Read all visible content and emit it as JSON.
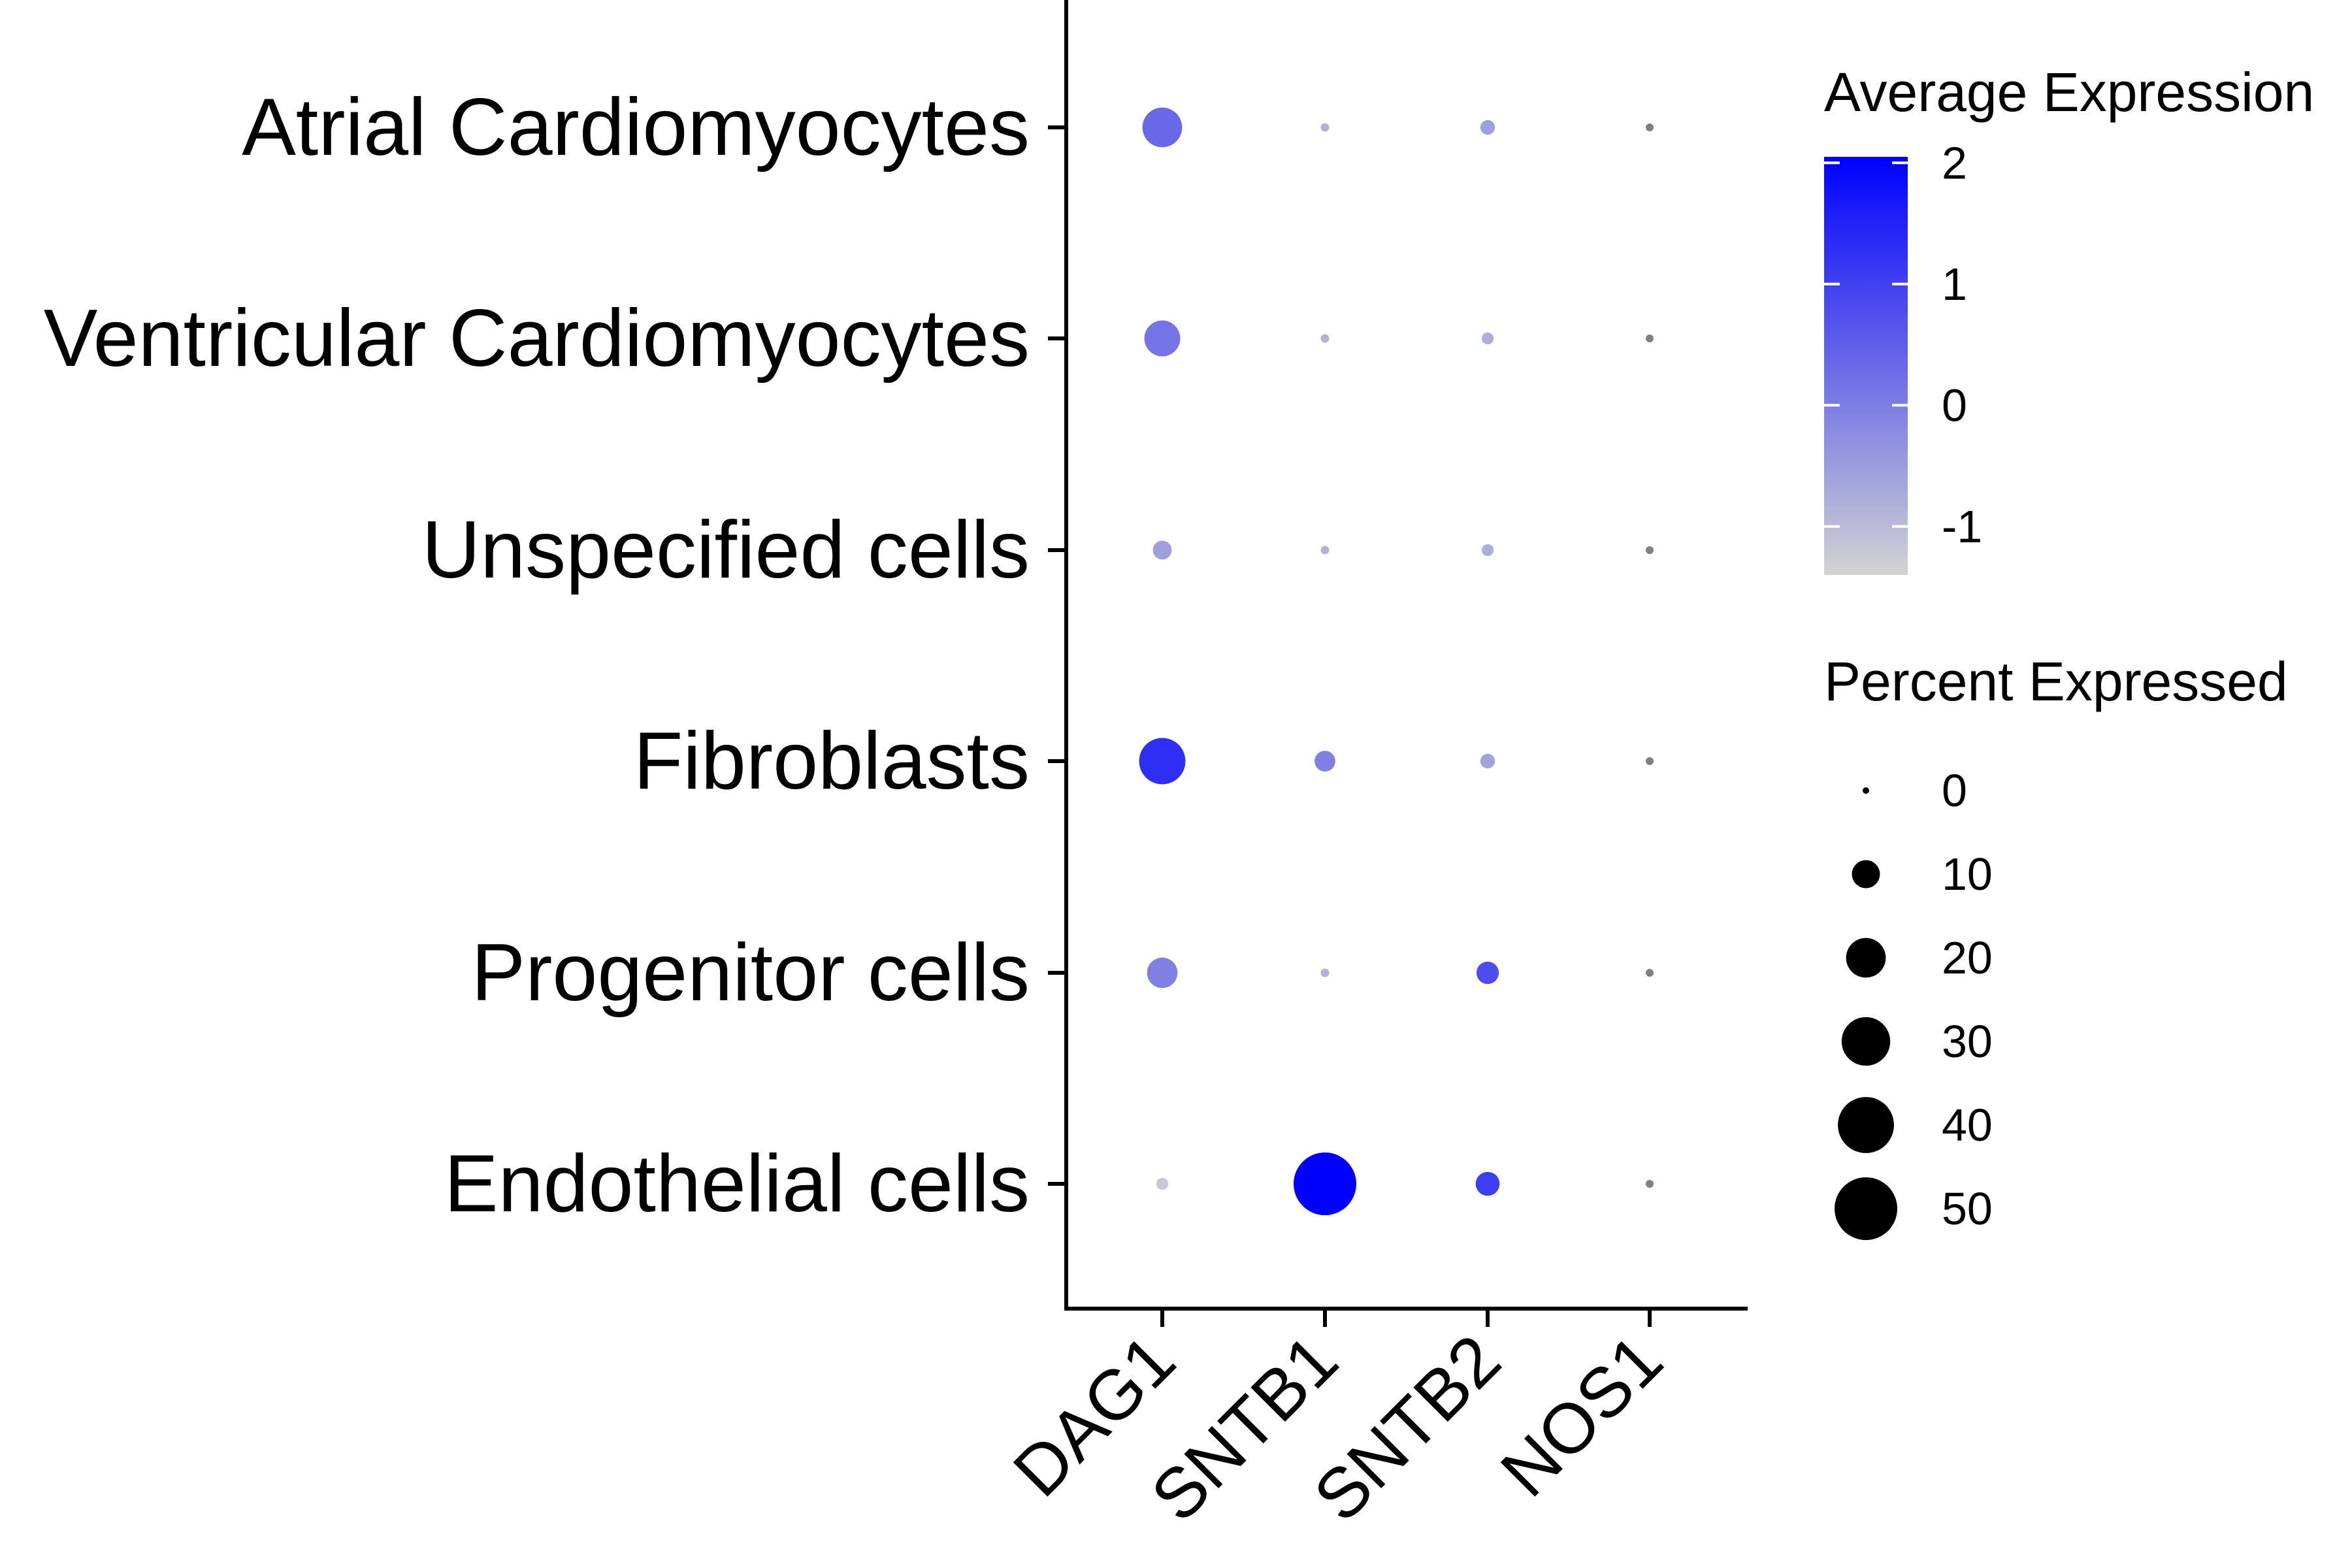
{
  "chart_data": {
    "type": "dotplot",
    "title": "",
    "xlabel": "",
    "ylabel": "",
    "features": [
      "DAG1",
      "SNTB1",
      "SNTB2",
      "NOS1"
    ],
    "cell_types": [
      "Atrial Cardiomyocytes",
      "Ventricular Cardiomyocytes",
      "Unspecified cells",
      "Fibroblasts",
      "Progenitor cells",
      "Endothelial cells"
    ],
    "avg_expression": [
      [
        0.35,
        -0.85,
        -0.55,
        -1.35
      ],
      [
        0.15,
        -0.85,
        -0.8,
        -1.35
      ],
      [
        -0.55,
        -0.85,
        -0.8,
        -1.35
      ],
      [
        1.3,
        -0.05,
        -0.6,
        -1.35
      ],
      [
        -0.05,
        -0.85,
        0.8,
        -1.35
      ],
      [
        -1.2,
        2.05,
        1.05,
        -1.35
      ]
    ],
    "pct_expressed": [
      [
        22,
        1,
        3,
        1
      ],
      [
        18,
        1,
        2,
        1
      ],
      [
        5,
        1,
        2,
        1
      ],
      [
        30,
        6,
        3,
        1
      ],
      [
        13,
        1,
        7,
        1
      ],
      [
        2,
        55,
        8,
        1
      ]
    ],
    "color_scale": {
      "title": "Average Expression",
      "low_color": "#d3d3d3",
      "high_color": "#0000ff",
      "range": [
        -1.4,
        2.05
      ],
      "ticks": [
        "2",
        "1",
        "0",
        "-1"
      ]
    },
    "size_scale": {
      "title": "Percent Expressed",
      "ticks": [
        "0",
        "10",
        "20",
        "30",
        "40",
        "50"
      ]
    },
    "legend_position": "right"
  }
}
